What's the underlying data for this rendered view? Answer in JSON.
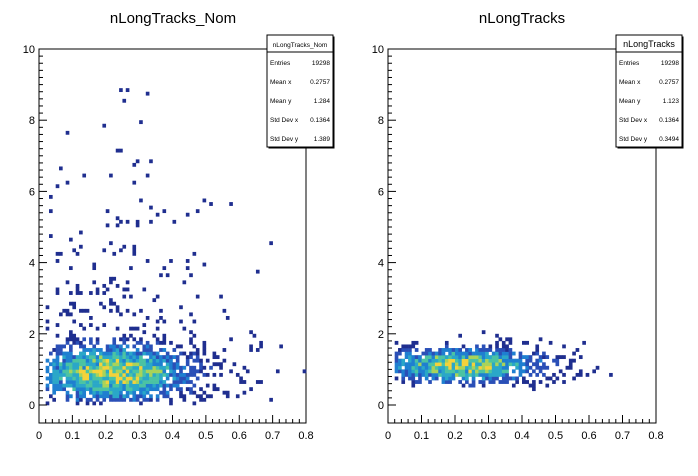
{
  "chart_data": [
    {
      "type": "heatmap",
      "title": "nLongTracks_Nom",
      "xlabel": "",
      "ylabel": "",
      "xlim": [
        0,
        0.8
      ],
      "ylim": [
        0,
        10
      ],
      "x_ticks": [
        "0",
        "0.1",
        "0.2",
        "0.3",
        "0.4",
        "0.5",
        "0.6",
        "0.7",
        "0.8"
      ],
      "y_ticks": [
        "0",
        "2",
        "4",
        "6",
        "8",
        "10"
      ],
      "colormap": [
        "#1f2e8f",
        "#2a4fb7",
        "#1f7fd0",
        "#2aa7c8",
        "#4bc3a3",
        "#a8d35a",
        "#f4d23a"
      ],
      "distribution": {
        "x_peak": 0.22,
        "x_spread": 0.16,
        "x_max": 0.8,
        "y_core_mean": 0.9,
        "y_core_spread": 0.6,
        "y_tail_max": 10,
        "tail_fraction": 0.35
      },
      "stats": {
        "name": "nLongTracks_Nom",
        "rows": [
          {
            "label": "Entries",
            "value": "19298"
          },
          {
            "label": "Mean x",
            "value": "0.2757"
          },
          {
            "label": "Mean y",
            "value": "1.284"
          },
          {
            "label": "Std Dev x",
            "value": "0.1364"
          },
          {
            "label": "Std Dev y",
            "value": "1.389"
          }
        ]
      }
    },
    {
      "type": "heatmap",
      "title": "nLongTracks",
      "xlabel": "",
      "ylabel": "",
      "xlim": [
        0,
        0.8
      ],
      "ylim": [
        0,
        10
      ],
      "x_ticks": [
        "0",
        "0.1",
        "0.2",
        "0.3",
        "0.4",
        "0.5",
        "0.6",
        "0.7",
        "0.8"
      ],
      "y_ticks": [
        "0",
        "2",
        "4",
        "6",
        "8",
        "10"
      ],
      "colormap": [
        "#1f2e8f",
        "#2a4fb7",
        "#1f7fd0",
        "#2aa7c8",
        "#4bc3a3",
        "#a8d35a",
        "#f4d23a"
      ],
      "distribution": {
        "x_peak": 0.22,
        "x_spread": 0.16,
        "x_max": 0.8,
        "y_core_mean": 1.12,
        "y_core_spread": 0.35,
        "y_tail_max": 2.6,
        "tail_fraction": 0.0
      },
      "stats": {
        "name": "nLongTracks",
        "rows": [
          {
            "label": "Entries",
            "value": "19298"
          },
          {
            "label": "Mean x",
            "value": "0.2757"
          },
          {
            "label": "Mean y",
            "value": "1.123"
          },
          {
            "label": "Std Dev x",
            "value": "0.1364"
          },
          {
            "label": "Std Dev y",
            "value": "0.3494"
          }
        ]
      }
    }
  ]
}
